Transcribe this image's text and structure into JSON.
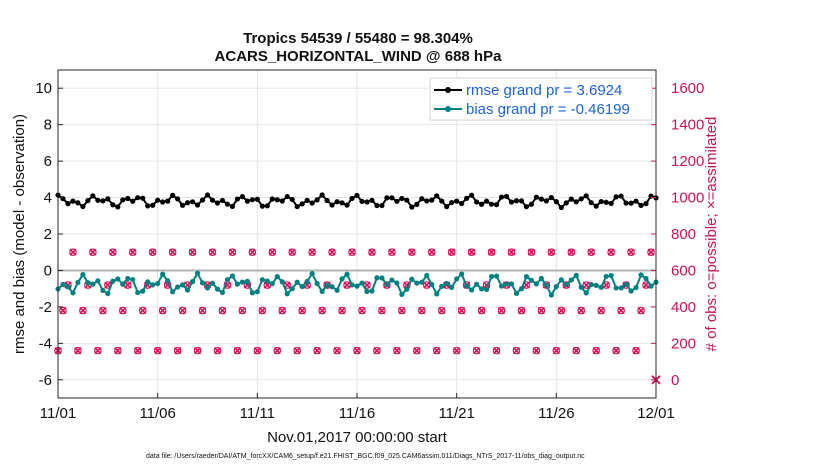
{
  "chart_data": {
    "type": "line",
    "title": [
      "Tropics 54539 / 55480 = 98.304%",
      "ACARS_HORIZONTAL_WIND @ 688 hPa"
    ],
    "xlabel": "Nov.01,2017 00:00:00 start",
    "ylabel": "rmse and bias (model - observation)",
    "y2label": "# of obs: o=possible; ×=assimilated",
    "footnote": "data file: /Users/raeder/DAI/ATM_forcXX/CAM6_setup/f.e21.FHIST_BGC.f09_025.CAM6assim.011/Diags_NTrS_2017-11/obs_diag_output.nc",
    "xlim": [
      0,
      30
    ],
    "ylim": [
      -7,
      11
    ],
    "y2lim": [
      -100,
      1700
    ],
    "x_ticks": [
      0,
      5,
      10,
      15,
      20,
      25,
      30
    ],
    "x_tick_labels": [
      "11/01",
      "11/06",
      "11/11",
      "11/16",
      "11/21",
      "11/26",
      "12/01"
    ],
    "y_ticks": [
      -6,
      -4,
      -2,
      0,
      2,
      4,
      6,
      8,
      10
    ],
    "y2_ticks": [
      0,
      200,
      400,
      600,
      800,
      1000,
      1200,
      1400,
      1600
    ],
    "grid": true,
    "legend_position": "top-right",
    "series": [
      {
        "name": "rmse grand pr = 3.6924",
        "color": "#000000",
        "axis": "left",
        "base": 3.8,
        "amp": 0.35,
        "phase": 1.3
      },
      {
        "name": "bias grand pr = -0.46199",
        "color": "#008080",
        "axis": "left",
        "base": -0.75,
        "amp": 0.6,
        "phase": 4.1
      }
    ],
    "obs_counts": {
      "color": "#d6125a",
      "levels": [
        160,
        380,
        520,
        700,
        780
      ],
      "last_value": 0
    },
    "zero_line": 0
  }
}
